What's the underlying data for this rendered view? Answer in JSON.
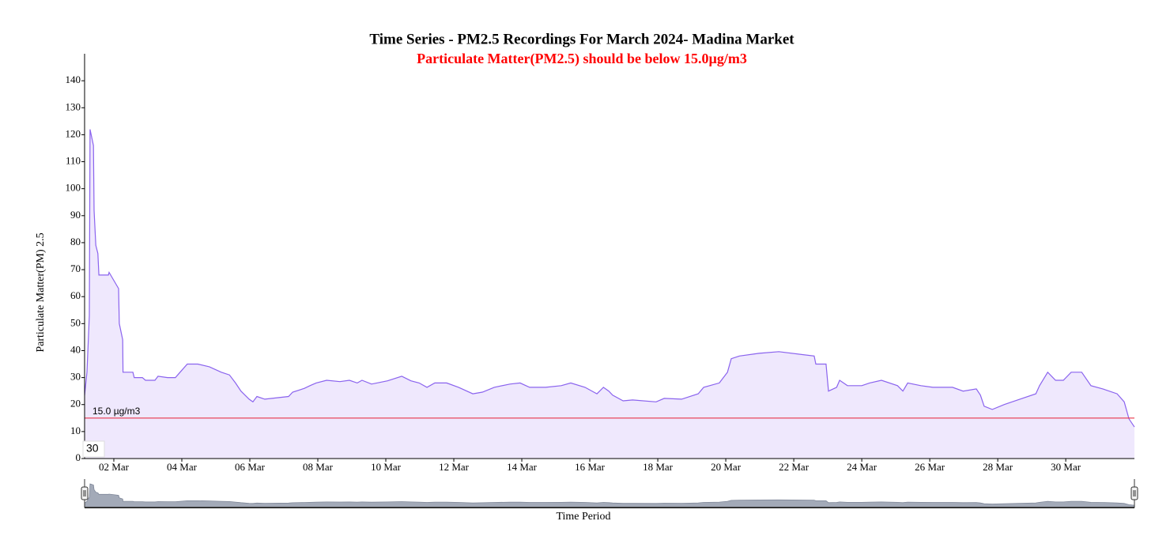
{
  "chart_data": {
    "type": "area",
    "title": "Time Series - PM2.5 Recordings For March 2024- Madina Market",
    "subtitle": "Particulate Matter(PM2.5) should be below 15.0µg/m3",
    "y_label": "Particulate Matter(PM) 2.5",
    "x_label": "Time Period",
    "corner_label": "30",
    "color": "#8a63ee",
    "fill": "#efe8fd",
    "navigator_color": "#a3aab8",
    "threshold": {
      "value": 15,
      "label": "15.0 µg/m3",
      "color": "#e8354a"
    },
    "x": [
      1.14,
      1.21,
      1.28,
      1.3,
      1.4,
      1.42,
      1.47,
      1.53,
      1.56,
      1.84,
      1.86,
      2.14,
      2.16,
      2.26,
      2.27,
      2.56,
      2.6,
      2.84,
      2.93,
      3.21,
      3.3,
      3.58,
      3.81,
      3.95,
      4.16,
      4.47,
      4.81,
      5.16,
      5.4,
      5.58,
      5.74,
      5.98,
      6.09,
      6.21,
      6.44,
      7.14,
      7.26,
      7.6,
      7.77,
      7.95,
      8.26,
      8.65,
      8.93,
      9.16,
      9.3,
      9.58,
      10.05,
      10.47,
      10.74,
      10.98,
      11.21,
      11.44,
      11.79,
      12.14,
      12.56,
      12.84,
      13.19,
      13.65,
      13.95,
      14.23,
      14.7,
      15.16,
      15.44,
      15.86,
      16.21,
      16.4,
      16.56,
      16.67,
      16.98,
      17.26,
      17.95,
      18.19,
      18.7,
      19.19,
      19.35,
      19.81,
      20.05,
      20.16,
      20.4,
      20.98,
      21.56,
      22.6,
      22.65,
      22.95,
      23.02,
      23.26,
      23.35,
      23.58,
      24.0,
      24.23,
      24.58,
      25.05,
      25.21,
      25.35,
      25.74,
      26.09,
      26.67,
      26.98,
      27.37,
      27.49,
      27.6,
      27.84,
      28.19,
      28.65,
      29.12,
      29.23,
      29.47,
      29.7,
      29.93,
      30.16,
      30.47,
      30.74,
      31.09,
      31.51,
      31.72,
      31.86,
      32.02
    ],
    "values": [
      23.5,
      32,
      53,
      122,
      116,
      92,
      79,
      76,
      68,
      68,
      69,
      63,
      50,
      44,
      32,
      32,
      30,
      30,
      29,
      29,
      30.5,
      30,
      30,
      32,
      35,
      35,
      34,
      32,
      31,
      28,
      25,
      22,
      21,
      23,
      22,
      23,
      24.6,
      26,
      27,
      28,
      29,
      28.5,
      29,
      28,
      29,
      27.6,
      28.8,
      30.5,
      28.8,
      28,
      26.4,
      28,
      28,
      26.4,
      24,
      24.6,
      26.4,
      27.6,
      28,
      26.4,
      26.4,
      27,
      28,
      26.4,
      24,
      26.4,
      25,
      23.5,
      21.4,
      21.7,
      21,
      22.3,
      22,
      24,
      26.4,
      28,
      32,
      37,
      38,
      39,
      39.6,
      38,
      35,
      35,
      25,
      26.4,
      29,
      27,
      27,
      28,
      29,
      27,
      25,
      28,
      27,
      26.4,
      26.4,
      25,
      25.8,
      23.5,
      19.4,
      18.2,
      20,
      22,
      24,
      27,
      32,
      29,
      29,
      32,
      32,
      27,
      25.8,
      24,
      21,
      14.7,
      11.7
    ],
    "xlim": [
      1.14,
      32.02
    ],
    "xticks": [
      {
        "value": 2,
        "label": "02 Mar"
      },
      {
        "value": 4,
        "label": "04 Mar"
      },
      {
        "value": 6,
        "label": "06 Mar"
      },
      {
        "value": 8,
        "label": "08 Mar"
      },
      {
        "value": 10,
        "label": "10 Mar"
      },
      {
        "value": 12,
        "label": "12 Mar"
      },
      {
        "value": 14,
        "label": "14 Mar"
      },
      {
        "value": 16,
        "label": "16 Mar"
      },
      {
        "value": 18,
        "label": "18 Mar"
      },
      {
        "value": 20,
        "label": "20 Mar"
      },
      {
        "value": 22,
        "label": "22 Mar"
      },
      {
        "value": 24,
        "label": "24 Mar"
      },
      {
        "value": 26,
        "label": "26 Mar"
      },
      {
        "value": 28,
        "label": "28 Mar"
      },
      {
        "value": 30,
        "label": "30 Mar"
      }
    ],
    "ylim": [
      0,
      150
    ],
    "yticks": [
      0,
      10,
      20,
      30,
      40,
      50,
      60,
      70,
      80,
      90,
      100,
      110,
      120,
      130,
      140
    ],
    "navigator_ylim": [
      0,
      130
    ]
  }
}
